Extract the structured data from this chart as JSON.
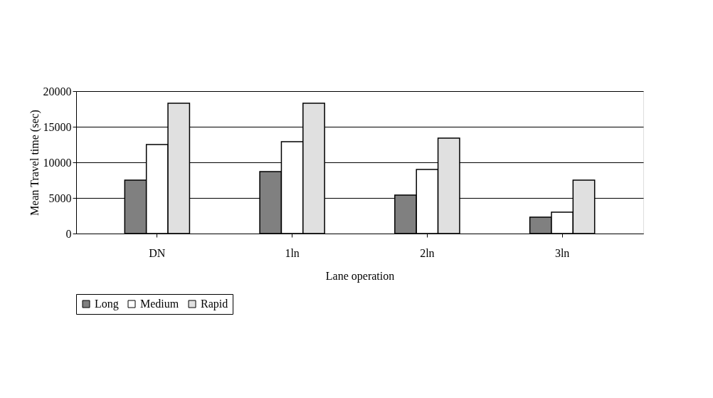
{
  "chart_data": {
    "type": "bar",
    "xlabel": "Lane operation",
    "ylabel": "Mean Travel time (sec)",
    "categories": [
      "DN",
      "1ln",
      "2ln",
      "3ln"
    ],
    "series": [
      {
        "name": "Long",
        "color": "#808080",
        "values": [
          7500,
          8700,
          5400,
          2300
        ]
      },
      {
        "name": "Medium",
        "color": "#ffffff",
        "values": [
          12500,
          12900,
          9000,
          3000
        ]
      },
      {
        "name": "Rapid",
        "color": "#e0e0e0",
        "values": [
          18300,
          18300,
          13400,
          7500
        ]
      }
    ],
    "ylim": [
      0,
      20000
    ],
    "yticks": [
      0,
      5000,
      10000,
      15000,
      20000
    ],
    "grid": "y",
    "legend": "bottom"
  }
}
